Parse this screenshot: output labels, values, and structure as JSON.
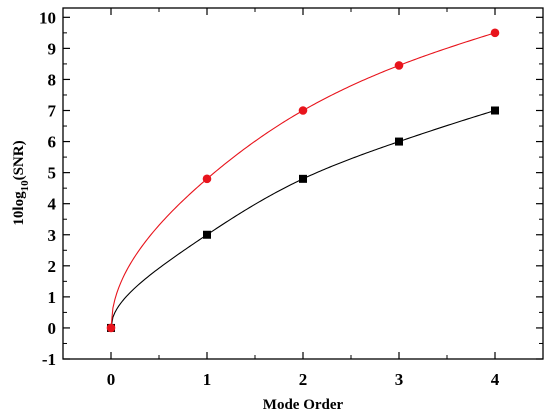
{
  "chart_data": {
    "type": "line",
    "xlabel": "Mode Order",
    "ylabel": {
      "prefix": "10log",
      "subscript": "10",
      "suffix": "(SNR)"
    },
    "xlim": [
      -0.5,
      4.5
    ],
    "ylim": [
      -1,
      10.3
    ],
    "x_ticks": [
      0,
      1,
      2,
      3,
      4
    ],
    "y_ticks": [
      -1,
      0,
      1,
      2,
      3,
      4,
      5,
      6,
      7,
      8,
      9,
      10
    ],
    "grid": false,
    "legend": "none",
    "x": [
      0,
      1,
      2,
      3,
      4
    ],
    "series": [
      {
        "values": [
          0,
          4.8,
          7.0,
          8.45,
          9.5
        ],
        "marker": "circle",
        "color": "#e8141c"
      },
      {
        "values": [
          0,
          3.0,
          4.8,
          6.0,
          7.0
        ],
        "marker": "square",
        "color": "#000000"
      }
    ]
  }
}
